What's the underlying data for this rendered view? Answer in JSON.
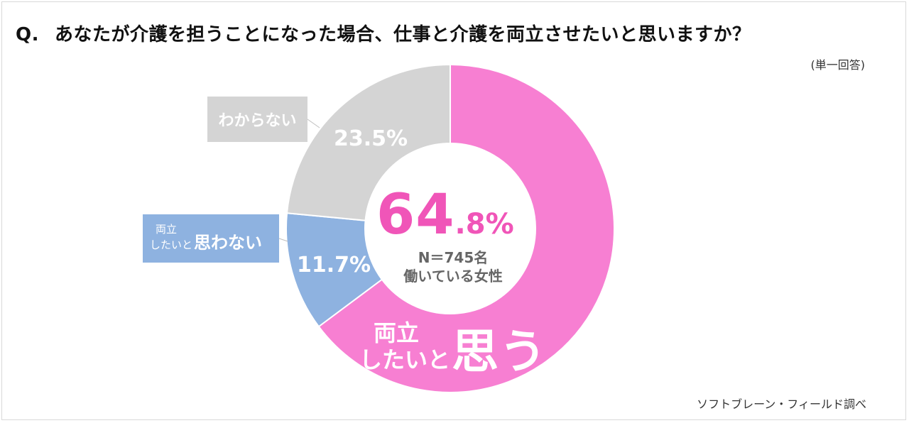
{
  "title": {
    "q_mark": "Q.",
    "text": "あなたが介護を担うことになった場合、仕事と介護を両立させたいと思いますか？"
  },
  "answer_type": "(単一回答)",
  "source": "ソフトブレーン・フィールド調べ",
  "center": {
    "pct_int": "64",
    "pct_dec": ".8%",
    "sample": "N＝745名",
    "respondents": "働いている女性"
  },
  "labels": {
    "yes_line1": "両立",
    "yes_line2": "したいと",
    "yes_big": "思う",
    "no_line1": "両立",
    "no_line2": "したいと",
    "no_big": "思わない",
    "unknown": "わからない"
  },
  "chart_data": {
    "type": "pie",
    "donut": true,
    "title": "あなたが介護を担うことになった場合、仕事と介護を両立させたいと思いますか？",
    "slices": [
      {
        "label": "両立したいと思う",
        "value": 64.8,
        "display": "64.8%",
        "color": "#f77fd2"
      },
      {
        "label": "両立したいと思わない",
        "value": 11.7,
        "display": "11.7%",
        "color": "#8eb2e0"
      },
      {
        "label": "わからない",
        "value": 23.5,
        "display": "23.5%",
        "color": "#d4d4d4"
      }
    ],
    "start": "top",
    "direction": "clockwise"
  }
}
